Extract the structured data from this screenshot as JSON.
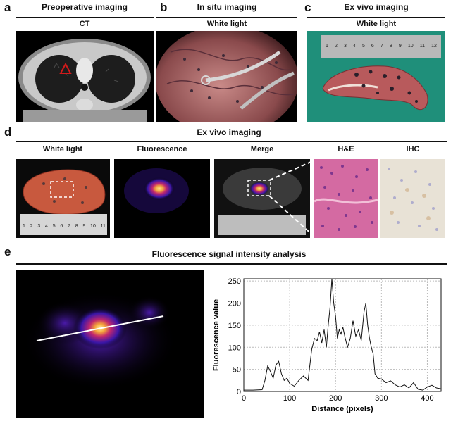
{
  "panel_a": {
    "letter": "a",
    "title": "Preoperative imaging",
    "subtitle": "CT"
  },
  "panel_b": {
    "letter": "b",
    "title": "In situ imaging",
    "subtitle": "White light"
  },
  "panel_c": {
    "letter": "c",
    "title": "Ex vivo imaging",
    "subtitle": "White light",
    "ruler_ticks": [
      "1",
      "2",
      "3",
      "4",
      "5",
      "6",
      "7",
      "8",
      "9",
      "10",
      "11",
      "12"
    ]
  },
  "panel_d": {
    "letter": "d",
    "title": "Ex vivo imaging",
    "columns": [
      "White light",
      "Fluorescence",
      "Merge",
      "H&E",
      "IHC"
    ],
    "ruler_ticks": [
      "1",
      "2",
      "3",
      "4",
      "5",
      "6",
      "7",
      "8",
      "9",
      "10",
      "11"
    ]
  },
  "panel_e": {
    "letter": "e",
    "title": "Fluorescence signal intensity analysis"
  },
  "colors": {
    "text": "#111111",
    "ct_lesion": "#d11a1a",
    "fluor_hot": "#ffd84a",
    "fluor_mid": "#c1276e",
    "fluor_low": "#3a16a8",
    "he_pink": "#c64a8e",
    "ihc_bg": "#e8e2d6"
  },
  "chart_data": {
    "type": "line",
    "title": "",
    "xlabel": "Distance (pixels)",
    "ylabel": "Fluorescence value",
    "xlim": [
      0,
      430
    ],
    "ylim": [
      0,
      255
    ],
    "xticks": [
      0,
      100,
      200,
      300,
      400
    ],
    "yticks": [
      0,
      50,
      100,
      150,
      200,
      250
    ],
    "grid": true,
    "series": [
      {
        "x": [
          0,
          20,
          40,
          46,
          52,
          58,
          64,
          70,
          76,
          82,
          88,
          94,
          100,
          110,
          120,
          130,
          140,
          148,
          154,
          160,
          165,
          170,
          175,
          180,
          184,
          188,
          192,
          196,
          200,
          204,
          208,
          212,
          216,
          220,
          226,
          232,
          238,
          244,
          250,
          256,
          262,
          266,
          270,
          274,
          278,
          282,
          286,
          292,
          300,
          310,
          320,
          330,
          340,
          350,
          360,
          370,
          380,
          390,
          400,
          410,
          420,
          430
        ],
        "y": [
          3,
          3,
          4,
          25,
          58,
          45,
          30,
          60,
          68,
          40,
          25,
          30,
          18,
          12,
          25,
          35,
          25,
          95,
          120,
          115,
          135,
          110,
          140,
          100,
          150,
          190,
          255,
          200,
          170,
          120,
          140,
          130,
          145,
          125,
          100,
          120,
          160,
          125,
          140,
          115,
          180,
          200,
          150,
          120,
          100,
          85,
          40,
          30,
          28,
          20,
          24,
          15,
          10,
          15,
          8,
          20,
          5,
          3,
          10,
          14,
          8,
          6
        ]
      }
    ]
  }
}
